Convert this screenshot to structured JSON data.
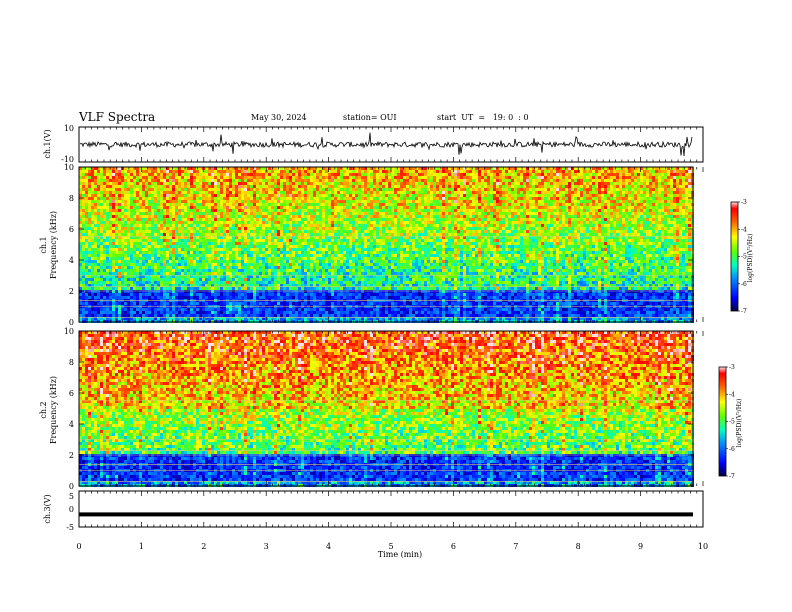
{
  "header": {
    "title": "VLF Spectra",
    "date": "May 30, 2024",
    "station": "station= OUI",
    "start_ut": "start  UT  =   19: 0  : 0"
  },
  "chart_data": [
    {
      "type": "line",
      "panel": "ch1-waveform",
      "ylabel": "ch.1(V)",
      "ylim": [
        -10,
        10
      ],
      "yticks": [
        "10",
        "-10"
      ],
      "x": [
        0,
        10
      ],
      "baseline": 0
    },
    {
      "type": "heatmap",
      "panel": "ch1-spectrogram",
      "ylabel": "ch.1\nFrequency  (kHz)",
      "ylabel_line1": "ch.1",
      "ylabel_line2": "Frequency  (kHz)",
      "xlim": [
        0,
        10
      ],
      "ylim": [
        0,
        10
      ],
      "yticks": [
        0,
        2,
        4,
        6,
        8,
        10
      ],
      "colorbar": {
        "label": "log(PSD)(V²/Hz)",
        "range": [
          -7,
          -3
        ],
        "ticks": [
          "-3",
          "-4",
          "-5",
          "-6",
          "-7"
        ]
      }
    },
    {
      "type": "heatmap",
      "panel": "ch2-spectrogram",
      "ylabel_line1": "ch.2",
      "ylabel_line2": "Frequency  (kHz)",
      "xlim": [
        0,
        10
      ],
      "ylim": [
        0,
        10
      ],
      "yticks": [
        0,
        2,
        4,
        6,
        8,
        10
      ],
      "colorbar": {
        "label": "log(PSD)(V²/Hz)",
        "range": [
          -7,
          -3
        ],
        "ticks": [
          "-3",
          "-4",
          "-5",
          "-6",
          "-7"
        ]
      }
    },
    {
      "type": "line",
      "panel": "ch3-waveform",
      "ylabel": "ch.3(V)",
      "ylim": [
        -5,
        5
      ],
      "yticks": [
        "5",
        "0",
        "-5"
      ],
      "value": -1.5
    }
  ],
  "xaxis": {
    "label": "Time  (min)",
    "ticks": [
      "0",
      "1",
      "2",
      "3",
      "4",
      "5",
      "6",
      "7",
      "8",
      "9",
      "10"
    ],
    "xlim": [
      0,
      10
    ]
  },
  "colors": {
    "colormap": [
      "#000080",
      "#0000ff",
      "#0080ff",
      "#00e0e0",
      "#00ff80",
      "#80ff00",
      "#ffff00",
      "#ff8000",
      "#ff0000",
      "#ffffff"
    ]
  }
}
